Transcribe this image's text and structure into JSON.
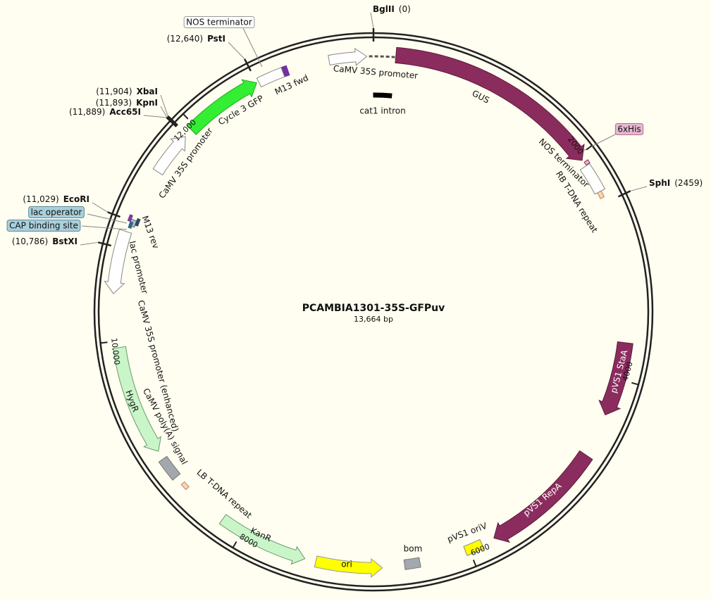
{
  "map": {
    "title": "PCAMBIA1301-35S-GFPuv",
    "length": {
      "value": 13664,
      "label": "13,664 bp"
    },
    "ticks": [
      2000,
      4000,
      6000,
      8000,
      {
        "value": 10000,
        "label": "10,000"
      },
      {
        "value": 12000,
        "label": "12,000"
      }
    ]
  },
  "sites": [
    {
      "name": "BglII",
      "position": {
        "value": 0,
        "label": "(0)"
      }
    },
    {
      "name": "SphI",
      "position": {
        "value": 2459,
        "label": "(2459)"
      }
    },
    {
      "name": "PstI",
      "position": {
        "value": 12640,
        "label": "(12,640)"
      }
    },
    {
      "name": "XbaI",
      "position": {
        "value": 11904,
        "label": "(11,904)"
      }
    },
    {
      "name": "KpnI",
      "position": {
        "value": 11893,
        "label": "(11,893)"
      }
    },
    {
      "name": "Acc65I",
      "position": {
        "value": 11889,
        "label": "(11,889)"
      }
    },
    {
      "name": "EcoRI",
      "position": {
        "value": 11029,
        "label": "(11,029)"
      }
    },
    {
      "name": "BstXI",
      "position": {
        "value": 10786,
        "label": "(10,786)"
      }
    }
  ],
  "features": [
    {
      "label": "CaMV 35S promoter"
    },
    {
      "label": "GUS"
    },
    {
      "label": "cat1 intron"
    },
    {
      "label": "NOS terminator"
    },
    {
      "label": "RB T-DNA repeat"
    },
    {
      "label": "6xHis"
    },
    {
      "label": "pVS1 StaA"
    },
    {
      "label": "pVS1 RepA"
    },
    {
      "label": "pVS1 oriV"
    },
    {
      "label": "bom"
    },
    {
      "label": "ori"
    },
    {
      "label": "KanR"
    },
    {
      "label": "LB T-DNA repeat"
    },
    {
      "label": "CaMV poly(A) signal"
    },
    {
      "label": "HygR"
    },
    {
      "label": "CaMV 35S promoter (enhanced)"
    },
    {
      "label": "lac promoter"
    },
    {
      "label": "M13 rev"
    },
    {
      "label": "lac operator"
    },
    {
      "label": "CAP binding site"
    },
    {
      "label": "CaMV 35S promoter"
    },
    {
      "label": "Cycle 3 GFP"
    },
    {
      "label": "M13 fwd"
    },
    {
      "label": "NOS terminator"
    }
  ]
}
